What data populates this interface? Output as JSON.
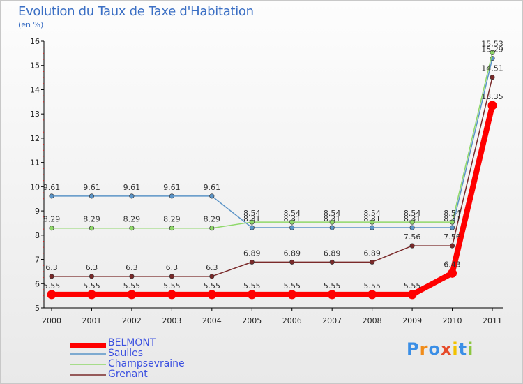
{
  "title": "Evolution du Taux de Taxe d'Habitation",
  "subtitle": "(en %)",
  "chart_data": {
    "type": "line",
    "title": "Evolution du Taux de Taxe d'Habitation",
    "ylabel": "(en %)",
    "xlabel": "",
    "ylim": [
      5,
      16
    ],
    "yticks": [
      "5",
      "6",
      "7",
      "8",
      "9",
      "10",
      "11",
      "12",
      "13",
      "14",
      "15",
      "16"
    ],
    "categories": [
      "2000",
      "2001",
      "2002",
      "2003",
      "2004",
      "2005",
      "2006",
      "2007",
      "2008",
      "2009",
      "2010",
      "2011"
    ],
    "series": [
      {
        "name": "BELMONT",
        "color": "#ff0000",
        "values": [
          5.55,
          5.55,
          5.55,
          5.55,
          5.55,
          5.55,
          5.55,
          5.55,
          5.55,
          5.55,
          6.43,
          13.35
        ],
        "labels": [
          "5.55",
          "5.55",
          "5.55",
          "5.55",
          "5.55",
          "5.55",
          "5.55",
          "5.55",
          "5.55",
          "5.55",
          "6.43",
          "13.35"
        ]
      },
      {
        "name": "Saulles",
        "color": "#5b94c7",
        "values": [
          9.61,
          9.61,
          9.61,
          9.61,
          9.61,
          8.31,
          8.31,
          8.31,
          8.31,
          8.31,
          8.31,
          15.29
        ],
        "labels": [
          "9.61",
          "9.61",
          "9.61",
          "9.61",
          "9.61",
          "8.31",
          "8.31",
          "8.31",
          "8.31",
          "8.31",
          "8.31",
          "15.29"
        ]
      },
      {
        "name": "Champsevraine",
        "color": "#8fd86a",
        "values": [
          8.29,
          8.29,
          8.29,
          8.29,
          8.29,
          8.54,
          8.54,
          8.54,
          8.54,
          8.54,
          8.54,
          15.53
        ],
        "labels": [
          "8.29",
          "8.29",
          "8.29",
          "8.29",
          "8.29",
          "8.54",
          "8.54",
          "8.54",
          "8.54",
          "8.54",
          "8.54",
          "15.53"
        ]
      },
      {
        "name": "Grenant",
        "color": "#7a2a2a",
        "values": [
          6.3,
          6.3,
          6.3,
          6.3,
          6.3,
          6.89,
          6.89,
          6.89,
          6.89,
          7.56,
          7.56,
          14.51
        ],
        "labels": [
          "6.3",
          "6.3",
          "6.3",
          "6.3",
          "6.3",
          "6.89",
          "6.89",
          "6.89",
          "6.89",
          "7.56",
          "7.56",
          "14.51"
        ]
      }
    ],
    "legend": [
      "BELMONT",
      "Saulles",
      "Champsevraine",
      "Grenant"
    ],
    "legend_position": "bottom-left",
    "grid": false
  },
  "logo": {
    "text": "Proxiti",
    "letter_colors": [
      "#3a8ee6",
      "#f08c1a",
      "#3a8ee6",
      "#e64b2a",
      "#f2c200",
      "#3a8ee6",
      "#8cc63f"
    ]
  }
}
